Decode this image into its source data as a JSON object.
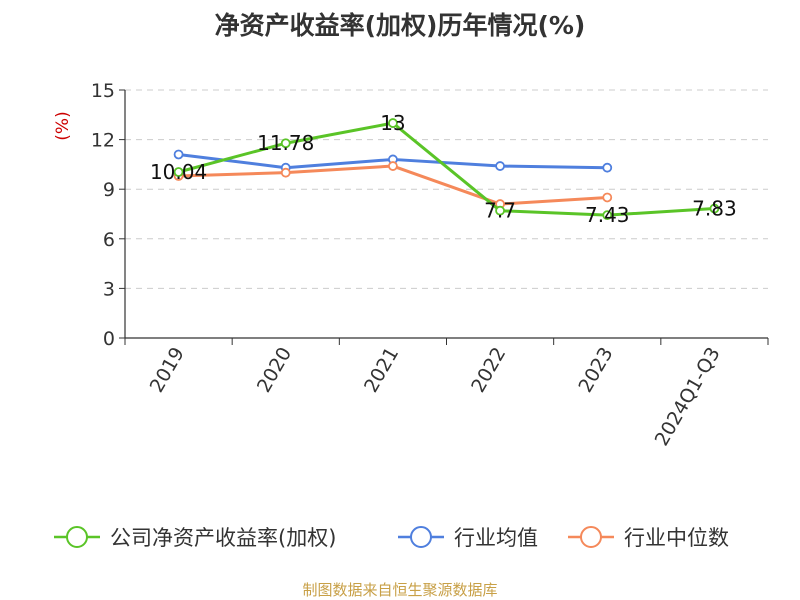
{
  "chart_data": {
    "type": "line",
    "title": "净资产收益率(加权)历年情况(%)",
    "ylabel": "(%)",
    "categories": [
      "2019",
      "2020",
      "2021",
      "2022",
      "2023",
      "2024Q1-Q3"
    ],
    "yticks": [
      "0",
      "3",
      "6",
      "9",
      "12",
      "15"
    ],
    "ylim": [
      0,
      15
    ],
    "grid": true,
    "legend_position": "bottom",
    "series": [
      {
        "name": "公司净资产收益率(加权)",
        "color": "#5ac427",
        "values": [
          10.04,
          11.78,
          13,
          7.7,
          7.43,
          7.83
        ],
        "labels": [
          "10.04",
          "11.78",
          "13",
          "7.7",
          "7.43",
          "7.83"
        ]
      },
      {
        "name": "行业均值",
        "color": "#4f7fde",
        "values": [
          11.1,
          10.3,
          10.8,
          10.4,
          10.3,
          null
        ]
      },
      {
        "name": "行业中位数",
        "color": "#f5895a",
        "values": [
          9.8,
          10.0,
          10.4,
          8.1,
          8.5,
          null
        ]
      }
    ],
    "unit_color": "#cc0000"
  },
  "source": {
    "text": "制图数据来自恒生聚源数据库",
    "color": "#c8a047"
  }
}
